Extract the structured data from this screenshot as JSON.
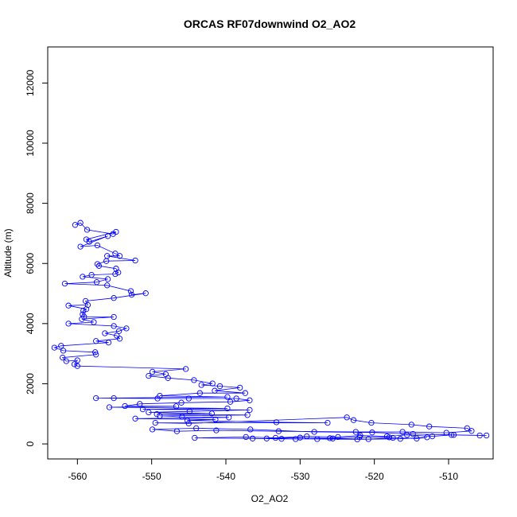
{
  "chart_data": {
    "type": "line",
    "title": "ORCAS RF07downwind O2_AO2",
    "xlabel": "O2_AO2",
    "ylabel": "Altitude (m)",
    "xlim": [
      -564,
      -504
    ],
    "ylim": [
      -500,
      13200
    ],
    "xticks": [
      -560,
      -550,
      -540,
      -530,
      -520,
      -510
    ],
    "yticks": [
      0,
      2000,
      4000,
      6000,
      8000,
      10000,
      12000
    ],
    "line_color": "#0000ff",
    "marker": "open-circle",
    "grid": false,
    "series": [
      {
        "points": [
          [
            -560.3,
            7280
          ],
          [
            -559.6,
            7350
          ],
          [
            -558.7,
            7120
          ],
          [
            -555.2,
            6980
          ],
          [
            -554.8,
            7050
          ],
          [
            -558.8,
            6800
          ],
          [
            -558.4,
            6720
          ],
          [
            -555.9,
            6910
          ],
          [
            -559.6,
            6560
          ],
          [
            -557.3,
            6600
          ],
          [
            -554.9,
            6330
          ],
          [
            -554.3,
            6250
          ],
          [
            -556.0,
            6250
          ],
          [
            -552.2,
            6100
          ],
          [
            -556.1,
            6080
          ],
          [
            -557.3,
            5980
          ],
          [
            -557.1,
            5920
          ],
          [
            -554.8,
            5830
          ],
          [
            -554.5,
            5700
          ],
          [
            -554.9,
            5650
          ],
          [
            -558.1,
            5620
          ],
          [
            -559.3,
            5560
          ],
          [
            -555.9,
            5480
          ],
          [
            -557.4,
            5380
          ],
          [
            -561.7,
            5330
          ],
          [
            -556.0,
            5270
          ],
          [
            -552.8,
            5080
          ],
          [
            -552.7,
            4960
          ],
          [
            -550.8,
            5010
          ],
          [
            -555.1,
            4850
          ],
          [
            -558.9,
            4750
          ],
          [
            -558.6,
            4620
          ],
          [
            -561.2,
            4600
          ],
          [
            -558.8,
            4480
          ],
          [
            -559.2,
            4430
          ],
          [
            -559.3,
            4310
          ],
          [
            -559.1,
            4230
          ],
          [
            -555.1,
            4220
          ],
          [
            -559.4,
            4150
          ],
          [
            -557.8,
            4050
          ],
          [
            -561.2,
            4000
          ],
          [
            -555.1,
            3920
          ],
          [
            -553.4,
            3840
          ],
          [
            -554.4,
            3750
          ],
          [
            -556.3,
            3680
          ],
          [
            -554.7,
            3600
          ],
          [
            -554.3,
            3500
          ],
          [
            -557.5,
            3420
          ],
          [
            -555.8,
            3370
          ],
          [
            -562.2,
            3260
          ],
          [
            -563.1,
            3200
          ],
          [
            -561.9,
            3100
          ],
          [
            -557.6,
            3050
          ],
          [
            -557.5,
            2970
          ],
          [
            -562.0,
            2870
          ],
          [
            -561.5,
            2750
          ],
          [
            -560.0,
            2780
          ],
          [
            -560.4,
            2650
          ],
          [
            -560.0,
            2590
          ],
          [
            -545.4,
            2490
          ],
          [
            -549.9,
            2400
          ],
          [
            -548.1,
            2320
          ],
          [
            -550.4,
            2260
          ],
          [
            -547.8,
            2190
          ],
          [
            -544.3,
            2120
          ],
          [
            -541.8,
            2010
          ],
          [
            -543.3,
            1960
          ],
          [
            -540.8,
            1920
          ],
          [
            -538.1,
            1870
          ],
          [
            -541.5,
            1770
          ],
          [
            -537.4,
            1690
          ],
          [
            -543.5,
            1690
          ],
          [
            -548.9,
            1600
          ],
          [
            -539.8,
            1560
          ],
          [
            -557.5,
            1520
          ],
          [
            -555.1,
            1520
          ],
          [
            -549.2,
            1510
          ],
          [
            -545.0,
            1510
          ],
          [
            -538.6,
            1510
          ],
          [
            -536.8,
            1450
          ],
          [
            -539.4,
            1400
          ],
          [
            -546.0,
            1370
          ],
          [
            -551.6,
            1330
          ],
          [
            -553.6,
            1260
          ],
          [
            -546.7,
            1250
          ],
          [
            -555.7,
            1220
          ],
          [
            -539.8,
            1180
          ],
          [
            -551.2,
            1150
          ],
          [
            -536.8,
            1130
          ],
          [
            -544.9,
            1080
          ],
          [
            -550.4,
            1050
          ],
          [
            -541.9,
            1010
          ],
          [
            -549.3,
            990
          ],
          [
            -537.1,
            960
          ],
          [
            -548.9,
            930
          ],
          [
            -545.9,
            900
          ],
          [
            -539.6,
            880
          ],
          [
            -552.2,
            840
          ],
          [
            -541.4,
            810
          ],
          [
            -545.2,
            780
          ],
          [
            -533.2,
            720
          ],
          [
            -526.3,
            700
          ],
          [
            -549.5,
            700
          ],
          [
            -545.0,
            680
          ],
          [
            -523.7,
            880
          ],
          [
            -522.8,
            790
          ],
          [
            -520.4,
            700
          ],
          [
            -515.0,
            640
          ],
          [
            -512.6,
            580
          ],
          [
            -507.5,
            520
          ],
          [
            -506.9,
            430
          ],
          [
            -510.3,
            370
          ],
          [
            -516.2,
            400
          ],
          [
            -522.5,
            400
          ],
          [
            -532.9,
            420
          ],
          [
            -541.3,
            450
          ],
          [
            -546.6,
            420
          ],
          [
            -549.9,
            480
          ],
          [
            -544.0,
            520
          ],
          [
            -536.7,
            480
          ],
          [
            -528.1,
            400
          ],
          [
            -520.3,
            380
          ],
          [
            -514.8,
            330
          ],
          [
            -509.3,
            300
          ],
          [
            -504.9,
            280
          ],
          [
            -505.8,
            280
          ],
          [
            -509.6,
            300
          ],
          [
            -512.2,
            250
          ],
          [
            -515.6,
            300
          ],
          [
            -518.3,
            250
          ],
          [
            -521.9,
            280
          ],
          [
            -524.9,
            230
          ],
          [
            -529.1,
            250
          ],
          [
            -533.3,
            200
          ],
          [
            -537.3,
            230
          ],
          [
            -544.2,
            200
          ],
          [
            -536.4,
            180
          ],
          [
            -530.6,
            160
          ],
          [
            -525.6,
            180
          ],
          [
            -520.8,
            160
          ],
          [
            -517.5,
            200
          ],
          [
            -514.3,
            180
          ],
          [
            -512.9,
            220
          ],
          [
            -516.5,
            170
          ],
          [
            -522.3,
            150
          ],
          [
            -527.7,
            160
          ],
          [
            -532.5,
            170
          ],
          [
            -534.5,
            180
          ],
          [
            -530.0,
            210
          ],
          [
            -526.0,
            190
          ],
          [
            -522.0,
            230
          ],
          [
            -518.0,
            220
          ]
        ]
      }
    ]
  }
}
